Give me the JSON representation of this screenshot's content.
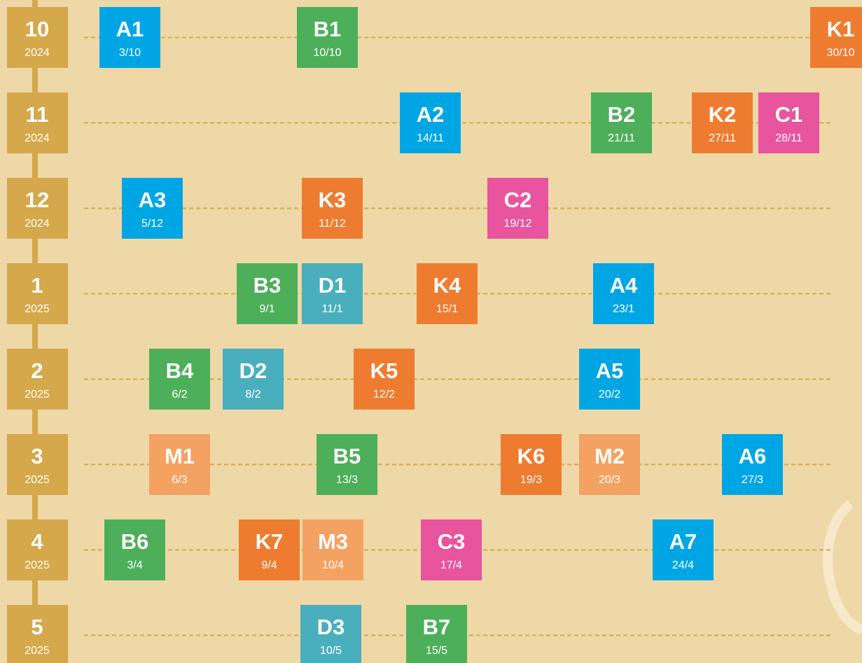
{
  "rows": [
    {
      "month": "10",
      "year": "2024",
      "events": [
        {
          "code": "A1",
          "date": "3/10",
          "color": "#00a6e4"
        },
        {
          "code": "B1",
          "date": "10/10",
          "color": "#4daf5a"
        },
        {
          "code": "K1",
          "date": "30/10",
          "color": "#ee7c30"
        }
      ]
    },
    {
      "month": "11",
      "year": "2024",
      "events": [
        {
          "code": "A2",
          "date": "14/11",
          "color": "#00a6e4"
        },
        {
          "code": "B2",
          "date": "21/11",
          "color": "#4daf5a"
        },
        {
          "code": "K2",
          "date": "27/11",
          "color": "#ee7c30"
        },
        {
          "code": "C1",
          "date": "28/11",
          "color": "#e8549e"
        }
      ]
    },
    {
      "month": "12",
      "year": "2024",
      "events": [
        {
          "code": "A3",
          "date": "5/12",
          "color": "#00a6e4"
        },
        {
          "code": "K3",
          "date": "11/12",
          "color": "#ee7c30"
        },
        {
          "code": "C2",
          "date": "19/12",
          "color": "#e8549e"
        }
      ]
    },
    {
      "month": "1",
      "year": "2025",
      "events": [
        {
          "code": "B3",
          "date": "9/1",
          "color": "#4daf5a"
        },
        {
          "code": "D1",
          "date": "11/1",
          "color": "#4aafbd"
        },
        {
          "code": "K4",
          "date": "15/1",
          "color": "#ee7c30"
        },
        {
          "code": "A4",
          "date": "23/1",
          "color": "#00a6e4"
        }
      ]
    },
    {
      "month": "2",
      "year": "2025",
      "events": [
        {
          "code": "B4",
          "date": "6/2",
          "color": "#4daf5a"
        },
        {
          "code": "D2",
          "date": "8/2",
          "color": "#4aafbd"
        },
        {
          "code": "K5",
          "date": "12/2",
          "color": "#ee7c30"
        },
        {
          "code": "A5",
          "date": "20/2",
          "color": "#00a6e4"
        }
      ]
    },
    {
      "month": "3",
      "year": "2025",
      "events": [
        {
          "code": "M1",
          "date": "6/3",
          "color": "#f4a261"
        },
        {
          "code": "B5",
          "date": "13/3",
          "color": "#4daf5a"
        },
        {
          "code": "K6",
          "date": "19/3",
          "color": "#ee7c30"
        },
        {
          "code": "M2",
          "date": "20/3",
          "color": "#f4a261"
        },
        {
          "code": "A6",
          "date": "27/3",
          "color": "#00a6e4"
        }
      ]
    },
    {
      "month": "4",
      "year": "2025",
      "events": [
        {
          "code": "B6",
          "date": "3/4",
          "color": "#4daf5a"
        },
        {
          "code": "K7",
          "date": "9/4",
          "color": "#ee7c30"
        },
        {
          "code": "M3",
          "date": "10/4",
          "color": "#f4a261"
        },
        {
          "code": "C3",
          "date": "17/4",
          "color": "#e8549e"
        },
        {
          "code": "A7",
          "date": "24/4",
          "color": "#00a6e4"
        }
      ]
    },
    {
      "month": "5",
      "year": "2025",
      "events": [
        {
          "code": "D3",
          "date": "10/5",
          "color": "#4aafbd"
        },
        {
          "code": "B7",
          "date": "15/5",
          "color": "#4daf5a"
        }
      ]
    }
  ]
}
